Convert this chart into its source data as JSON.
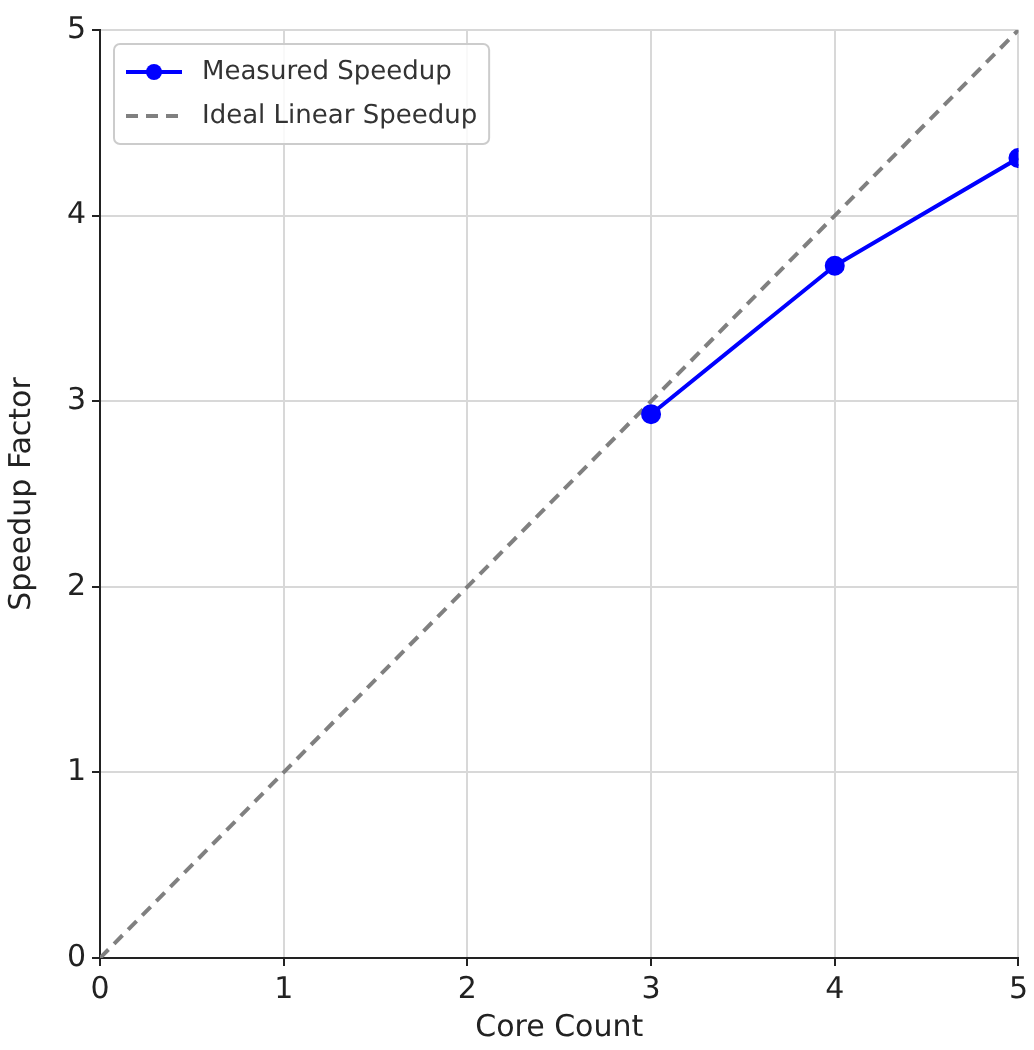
{
  "chart_data": {
    "type": "line",
    "xlabel": "Core Count",
    "ylabel": "Speedup Factor",
    "xlim": [
      0,
      5
    ],
    "ylim": [
      0,
      5
    ],
    "xticks": [
      0,
      1,
      2,
      3,
      4,
      5
    ],
    "yticks": [
      0,
      1,
      2,
      3,
      4,
      5
    ],
    "grid": true,
    "legend": "top left",
    "series": [
      {
        "name": "Measured Speedup",
        "color": "#0000ff",
        "x": [
          3,
          4,
          5
        ],
        "values": [
          2.93,
          3.73,
          4.31
        ],
        "marker": "circle",
        "line_style": "solid"
      },
      {
        "name": "Ideal Linear Speedup",
        "color": "#808080",
        "x": [
          0,
          5
        ],
        "values": [
          0,
          5
        ],
        "marker": "none",
        "line_style": "dashed"
      }
    ]
  }
}
